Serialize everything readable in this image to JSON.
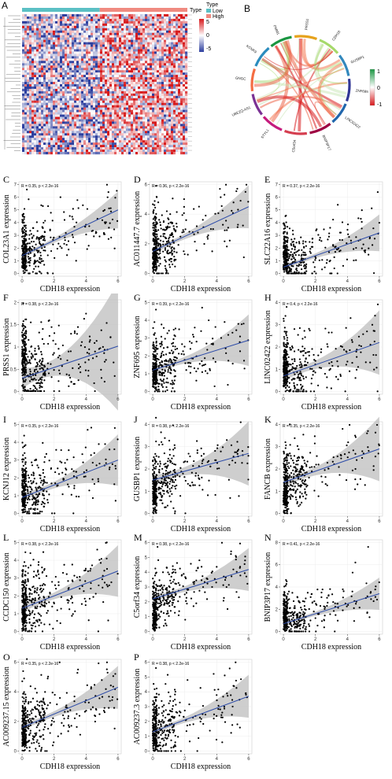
{
  "panel_letters": [
    "A",
    "B",
    "C",
    "D",
    "E",
    "F",
    "G",
    "H",
    "I",
    "J",
    "K",
    "L",
    "M",
    "N",
    "O",
    "P"
  ],
  "heatmap": {
    "type_label": "Type",
    "legend_title": "Type",
    "groups": [
      {
        "name": "Low",
        "color": "#5bc0c4"
      },
      {
        "name": "High",
        "color": "#f08a80"
      }
    ],
    "scale_ticks": [
      "5",
      "0",
      "-5"
    ],
    "scale_colors": {
      "high": "#d7191c",
      "mid": "#ffffff",
      "low": "#2c3e9e"
    }
  },
  "chord": {
    "genes": [
      "KCNK9",
      "PMM1",
      "PRSS1",
      "CDH18",
      "GUSBP1",
      "ZNF695",
      "LINC02422",
      "BNIP3P17",
      "C5orf34",
      "STYL1",
      "UBE2Q-AS1",
      "GNGC"
    ],
    "scale_ticks": [
      "1",
      "0",
      "-1"
    ],
    "scale_colors": {
      "pos": "#1a9641",
      "mid": "#ffffff",
      "neg": "#d7191c"
    }
  },
  "scatter_common": {
    "xlabel": "CDH18 expression",
    "x_ticks": [
      0,
      2,
      4,
      6
    ],
    "stat_suffix": ", p < 2.2e-16"
  },
  "chart_data": [
    {
      "type": "scatter",
      "panel": "C",
      "ylabel": "COL23A1 expression",
      "r": "R = 0.35",
      "ylim": [
        0,
        7
      ],
      "y_ticks": [
        0,
        1,
        2,
        3,
        4,
        5,
        6,
        7
      ],
      "intercept": 1.4,
      "slope": 0.6,
      "spread": 1.3,
      "outliers": [
        [
          0.3,
          6.6
        ],
        [
          1.3,
          5.3
        ],
        [
          2.4,
          6.0
        ],
        [
          5.4,
          6.4
        ]
      ]
    },
    {
      "type": "scatter",
      "panel": "D",
      "ylabel": "AC011447.7 expression",
      "r": "R = 0.36",
      "ylim": [
        0,
        6
      ],
      "y_ticks": [
        0,
        2,
        4,
        6
      ],
      "intercept": 1.5,
      "slope": 0.5,
      "spread": 1.2,
      "outliers": [
        [
          0.2,
          5.9
        ],
        [
          4.2,
          5.7
        ],
        [
          5.8,
          5.5
        ]
      ]
    },
    {
      "type": "scatter",
      "panel": "E",
      "ylabel": "SLC22A16 expression",
      "r": "R = 0.37",
      "ylim": [
        0,
        7
      ],
      "y_ticks": [
        0,
        1,
        2,
        3,
        4,
        5,
        6,
        7
      ],
      "intercept": 0.5,
      "slope": 0.45,
      "spread": 1.1,
      "outliers": [
        [
          5.9,
          6.4
        ],
        [
          3.4,
          5.4
        ]
      ]
    },
    {
      "type": "scatter",
      "panel": "F",
      "ylabel": "PRSS1 expression",
      "r": "R = 0.38",
      "ylim": [
        0,
        2
      ],
      "y_ticks": [
        0,
        0.5,
        1,
        1.5,
        2
      ],
      "intercept": 0.3,
      "slope": 0.12,
      "spread": 0.45,
      "outliers": [
        [
          4.0,
          1.75
        ],
        [
          1.7,
          1.6
        ]
      ]
    },
    {
      "type": "scatter",
      "panel": "G",
      "ylabel": "ZNF695 expression",
      "r": "R = 0.39",
      "ylim": [
        0,
        5
      ],
      "y_ticks": [
        0,
        1,
        2,
        3,
        4,
        5
      ],
      "intercept": 1.2,
      "slope": 0.28,
      "spread": 0.9,
      "outliers": [
        [
          0.2,
          4.6
        ],
        [
          3.5,
          4.0
        ]
      ]
    },
    {
      "type": "scatter",
      "panel": "H",
      "ylabel": "LINC02422 expression",
      "r": "R = 0.4",
      "ylim": [
        0,
        4
      ],
      "y_ticks": [
        0,
        1,
        2,
        3,
        4
      ],
      "intercept": 0.7,
      "slope": 0.25,
      "spread": 0.8,
      "outliers": [
        [
          0.2,
          3.8
        ],
        [
          4.2,
          3.3
        ]
      ]
    },
    {
      "type": "scatter",
      "panel": "I",
      "ylabel": "KCNJ12 expression",
      "r": "R = 0.35",
      "ylim": [
        0,
        5
      ],
      "y_ticks": [
        0,
        1,
        2,
        3,
        4,
        5
      ],
      "intercept": 0.9,
      "slope": 0.35,
      "spread": 1.0,
      "outliers": [
        [
          5.8,
          4.8
        ],
        [
          4.1,
          4.7
        ]
      ]
    },
    {
      "type": "scatter",
      "panel": "J",
      "ylabel": "GUSBP1 expression",
      "r": "R = 0.38",
      "ylim": [
        0,
        4
      ],
      "y_ticks": [
        0,
        1,
        2,
        3,
        4
      ],
      "intercept": 1.5,
      "slope": 0.2,
      "spread": 0.7,
      "outliers": [
        [
          0.2,
          4.3
        ],
        [
          5.5,
          4.1
        ]
      ]
    },
    {
      "type": "scatter",
      "panel": "K",
      "ylabel": "FANCB expression",
      "r": "R = 0.35",
      "ylim": [
        0,
        4
      ],
      "y_ticks": [
        0,
        1,
        2,
        3,
        4
      ],
      "intercept": 1.4,
      "slope": 0.25,
      "spread": 0.75,
      "outliers": [
        [
          3.7,
          3.8
        ],
        [
          0.4,
          4.0
        ]
      ]
    },
    {
      "type": "scatter",
      "panel": "L",
      "ylabel": "CCDC150 expression",
      "r": "R = 0.38",
      "ylim": [
        0,
        5
      ],
      "y_ticks": [
        0,
        1,
        2,
        3,
        4,
        5
      ],
      "intercept": 1.3,
      "slope": 0.35,
      "spread": 1.0,
      "outliers": [
        [
          5.3,
          5.0
        ],
        [
          4.7,
          4.6
        ]
      ]
    },
    {
      "type": "scatter",
      "panel": "M",
      "ylabel": "C5orf34 expression",
      "r": "R = 0.38",
      "ylim": [
        0,
        6
      ],
      "y_ticks": [
        0,
        1,
        2,
        3,
        4,
        5,
        6
      ],
      "intercept": 2.2,
      "slope": 0.33,
      "spread": 1.0,
      "outliers": [
        [
          0.3,
          5.7
        ],
        [
          4.9,
          5.4
        ]
      ]
    },
    {
      "type": "scatter",
      "panel": "N",
      "ylabel": "BNIP3P17 expression",
      "r": "R = 0.41",
      "ylim": [
        0,
        8
      ],
      "y_ticks": [
        0,
        2,
        4,
        6,
        8
      ],
      "intercept": 0.7,
      "slope": 0.45,
      "spread": 1.1,
      "outliers": [
        [
          5.3,
          7.6
        ],
        [
          4.5,
          6.2
        ]
      ]
    },
    {
      "type": "scatter",
      "panel": "O",
      "ylabel": "AC009237.15 expression",
      "r": "R = 0.35",
      "ylim": [
        0,
        6
      ],
      "y_ticks": [
        0,
        2,
        4,
        6
      ],
      "intercept": 1.6,
      "slope": 0.45,
      "spread": 1.2,
      "outliers": [
        [
          3.5,
          5.5
        ],
        [
          0.3,
          6.2
        ]
      ]
    },
    {
      "type": "scatter",
      "panel": "P",
      "ylabel": "AC009237.3 expression",
      "r": "R = 0.38",
      "ylim": [
        0,
        6
      ],
      "y_ticks": [
        0,
        1,
        2,
        3,
        4,
        5,
        6
      ],
      "intercept": 1.3,
      "slope": 0.4,
      "spread": 1.1,
      "outliers": [
        [
          4.5,
          5.1
        ],
        [
          0.2,
          5.6
        ]
      ]
    }
  ]
}
